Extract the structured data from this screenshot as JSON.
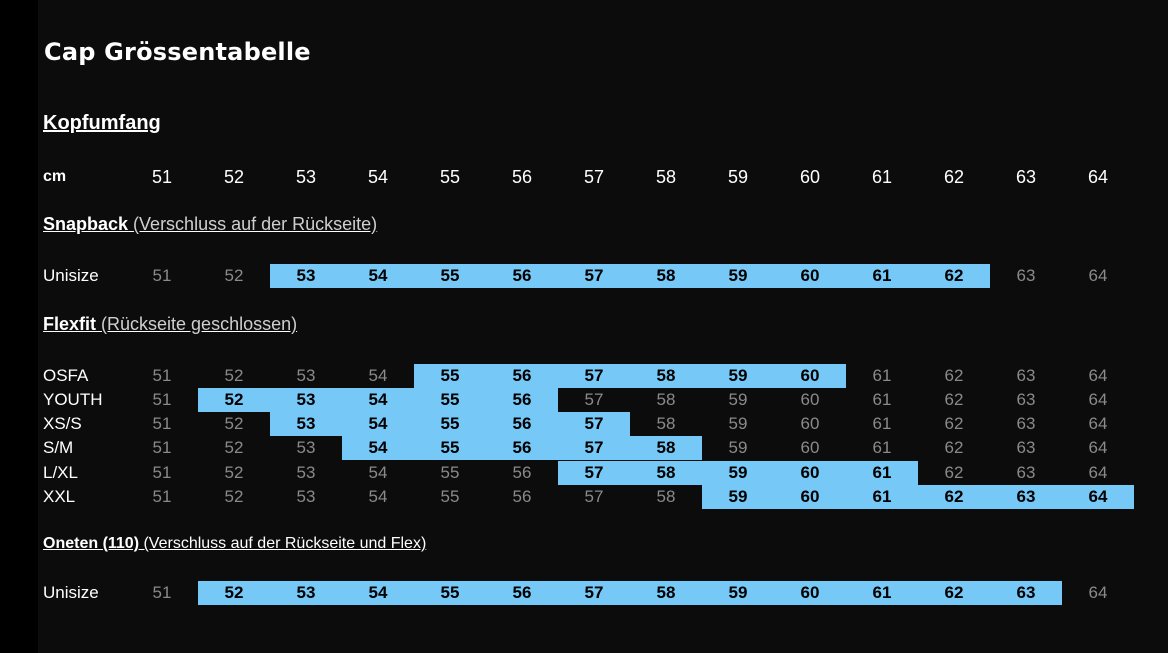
{
  "title": "Cap Grössentabelle",
  "heading": "Kopfumfang",
  "sizes": [
    "51",
    "52",
    "53",
    "54",
    "55",
    "56",
    "57",
    "58",
    "59",
    "60",
    "61",
    "62",
    "63",
    "64"
  ],
  "header_row": {
    "label": "cm"
  },
  "sections": [
    {
      "id": "snapback",
      "title_bold": "Snapback",
      "title_rest": " (Verschluss auf der Rückseite)",
      "rows": [
        {
          "label": "Unisize",
          "highlight": [
            2,
            11
          ]
        }
      ]
    },
    {
      "id": "flexfit",
      "title_bold": "Flexfit",
      "title_rest": " (Rückseite geschlossen)",
      "rows": [
        {
          "label": "OSFA",
          "highlight": [
            4,
            9
          ]
        },
        {
          "label": "YOUTH",
          "highlight": [
            1,
            5
          ]
        },
        {
          "label": "XS/S",
          "highlight": [
            2,
            6
          ]
        },
        {
          "label": "S/M",
          "highlight": [
            3,
            7
          ]
        },
        {
          "label": "L/XL",
          "highlight": [
            6,
            10
          ]
        },
        {
          "label": "XXL",
          "highlight": [
            8,
            13
          ]
        }
      ]
    },
    {
      "id": "oneten",
      "title_bold": "Oneten (110)",
      "title_rest": " (Verschluss auf der Rückseite und Flex)",
      "rows": [
        {
          "label": "Unisize",
          "highlight": [
            1,
            12
          ]
        }
      ]
    }
  ],
  "colors": {
    "highlight": "#76c8f7",
    "background": "#0c0c0c",
    "muted_text": "#8a8a8a"
  }
}
